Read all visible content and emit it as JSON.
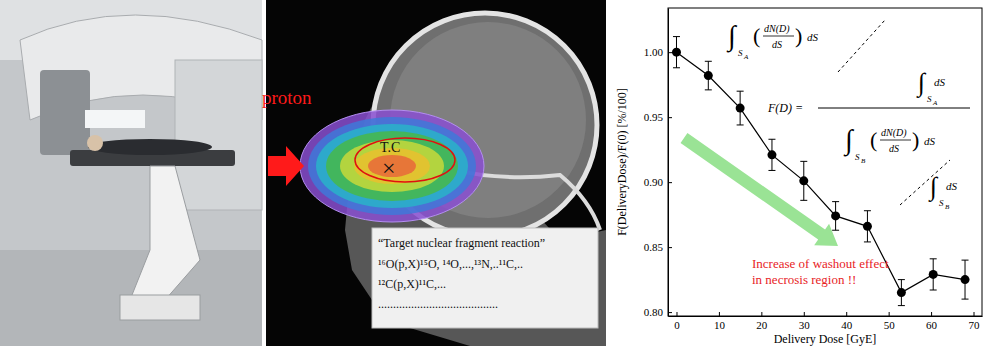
{
  "chart_data": {
    "type": "line",
    "xlabel": "Delivery Dose [GyE]",
    "ylabel": "F(DeliveryDose)/F(0) [%/100]",
    "x": [
      0,
      7.5,
      15,
      22.5,
      30,
      37.5,
      45,
      53,
      60.5,
      68
    ],
    "y": [
      1.0,
      0.982,
      0.957,
      0.921,
      0.901,
      0.874,
      0.866,
      0.815,
      0.829,
      0.825
    ],
    "error": [
      0.012,
      0.011,
      0.013,
      0.012,
      0.015,
      0.011,
      0.012,
      0.01,
      0.012,
      0.015
    ],
    "xlim": [
      -2,
      72
    ],
    "ylim": [
      0.797,
      1.034
    ],
    "xticks": [
      0,
      10,
      20,
      30,
      40,
      50,
      60,
      70
    ],
    "yticks": [
      {
        "value": 0.8,
        "label": "0.80"
      },
      0.85,
      {
        "value": 0.9,
        "label": "0.90"
      },
      0.95,
      {
        "value": 1,
        "label": "1.00"
      }
    ],
    "color": "#000000",
    "marker": "circle",
    "line_style": "solid",
    "grid": false,
    "annotations": [
      {
        "lines": [
          "Increase of washout effect",
          "in necrosis region !!"
        ],
        "color": "#e8231f"
      }
    ],
    "formula": {
      "lhs": "F(D) =",
      "integral": "∫",
      "domain": "S",
      "sub_a": "A",
      "sub_b": "B",
      "numerator": "dN(D)",
      "denominator": "dS",
      "open": "(",
      "close": ")",
      "differential": "dS"
    }
  },
  "panels": {
    "beam_label": "proton",
    "target_label": "T.C",
    "target_mark": "×",
    "reaction_title": "“Target nuclear fragment reaction”",
    "reactions": [
      "¹⁶O(p,X)¹⁵O, ¹⁴O,...,¹³N,..¹¹C,..",
      "¹²C(p,X)¹¹C,...",
      "........................................"
    ]
  }
}
